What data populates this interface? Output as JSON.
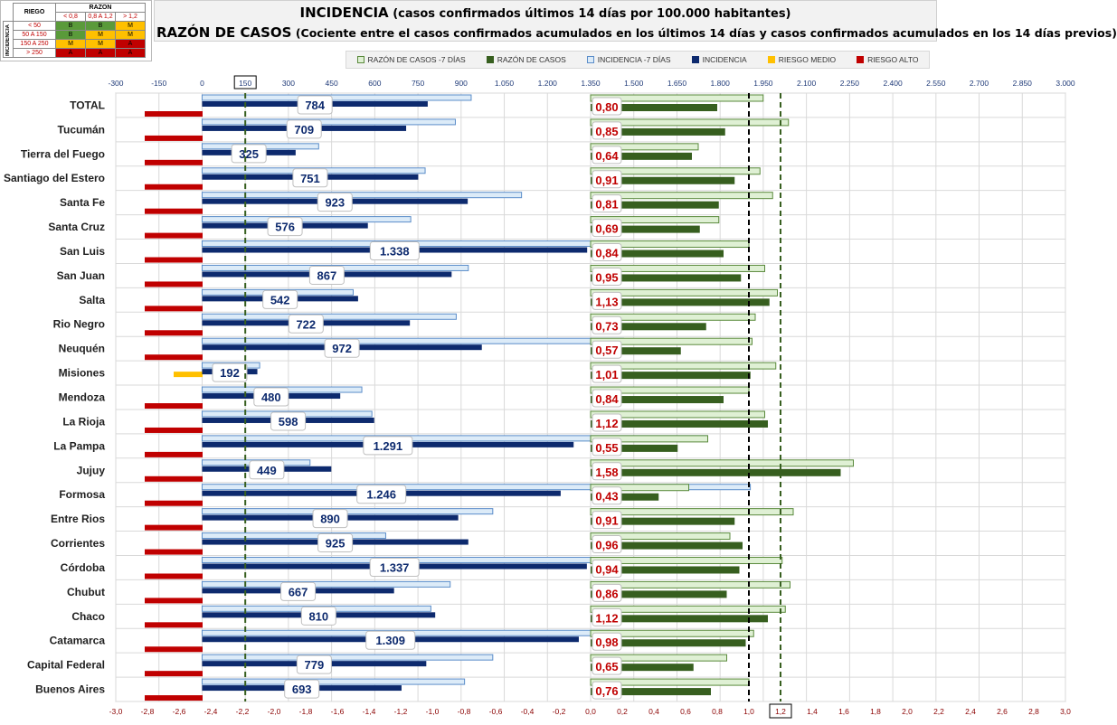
{
  "titles": {
    "title1_main": "INCIDENCIA",
    "title1_sub": " (casos confirmados últimos 14 días por 100.000 habitantes)",
    "title2_main": "RAZÓN DE CASOS",
    "title2_sub": " (Cociente entre el casos confirmados acumulados en los últimos 14 días y casos confirmados acumulados en los 14 días previos)"
  },
  "risk_table": {
    "riego_label": "RIEGO",
    "razon_label": "RAZON",
    "incidencia_label": "INCIDENCIA",
    "razon_ranges": [
      "< 0,8",
      "0,8 A 1,2",
      "> 1,2"
    ],
    "rows": [
      {
        "range": "< 50",
        "cells": [
          "B",
          "B",
          "M"
        ]
      },
      {
        "range": "50 A 150",
        "cells": [
          "B",
          "M",
          "M"
        ]
      },
      {
        "range": "150 A 250",
        "cells": [
          "M",
          "M",
          "A"
        ]
      },
      {
        "range": "> 250",
        "cells": [
          "A",
          "A",
          "A"
        ]
      }
    ],
    "colors": {
      "B": "#5a9a3a",
      "M": "#ffc000",
      "A": "#c00000"
    }
  },
  "legend": [
    {
      "label": "RAZÓN DE CASOS -7 DÍAS",
      "color": "#dff0d4",
      "border": "#5a8a3c"
    },
    {
      "label": "RAZÓN DE CASOS",
      "color": "#375f1f",
      "border": "#375f1f"
    },
    {
      "label": "INCIDENCIA -7 DÍAS",
      "color": "#dcebf8",
      "border": "#5b8dc9"
    },
    {
      "label": "INCIDENCIA",
      "color": "#0d2a6e",
      "border": "#0d2a6e"
    },
    {
      "label": "RIESGO MEDIO",
      "color": "#ffc000",
      "border": "#ffc000"
    },
    {
      "label": "RIESGO ALTO",
      "color": "#c00000",
      "border": "#c00000"
    }
  ],
  "chart_data": {
    "type": "bar",
    "categories": [
      "TOTAL",
      "Tucumán",
      "Tierra del Fuego",
      "Santiago del Estero",
      "Santa Fe",
      "Santa Cruz",
      "San Luis",
      "San Juan",
      "Salta",
      "Rio Negro",
      "Neuquén",
      "Misiones",
      "Mendoza",
      "La Rioja",
      "La Pampa",
      "Jujuy",
      "Formosa",
      "Entre Rios",
      "Corrientes",
      "Córdoba",
      "Chubut",
      "Chaco",
      "Catamarca",
      "Capital Federal",
      "Buenos Aires"
    ],
    "incidence_axis": {
      "ticks": [
        -300,
        -150,
        0,
        150,
        300,
        450,
        600,
        750,
        900,
        1050,
        1200,
        1350,
        1500,
        1650,
        1800,
        1950,
        2100,
        2250,
        2400,
        2550,
        2700,
        2850,
        3000
      ],
      "tick_labels": [
        "-300",
        "-150",
        "0",
        "150",
        "300",
        "450",
        "600",
        "750",
        "900",
        "1.050",
        "1.200",
        "1.350",
        "1.500",
        "1.650",
        "1.800",
        "1.950",
        "2.100",
        "2.250",
        "2.400",
        "2.550",
        "2.700",
        "2.850",
        "3.000"
      ],
      "range": [
        -300,
        3000
      ],
      "highlight_tick": "150",
      "reference_line": 150
    },
    "ratio_axis": {
      "ticks": [
        -3.0,
        -2.8,
        -2.6,
        -2.4,
        -2.2,
        -2.0,
        -1.8,
        -1.6,
        -1.4,
        -1.2,
        -1.0,
        -0.8,
        -0.6,
        -0.4,
        -0.2,
        0.0,
        0.2,
        0.4,
        0.6,
        0.8,
        1.0,
        1.2,
        1.4,
        1.6,
        1.8,
        2.0,
        2.2,
        2.4,
        2.6,
        2.8,
        3.0
      ],
      "tick_labels": [
        "-3,0",
        "-2,8",
        "-2,6",
        "-2,4",
        "-2,2",
        "-2,0",
        "-1,8",
        "-1,6",
        "-1,4",
        "-1,2",
        "-1,0",
        "-0,8",
        "-0,6",
        "-0,4",
        "-0,2",
        "0,0",
        "0,2",
        "0,4",
        "0,6",
        "0,8",
        "1,0",
        "1,2",
        "1,4",
        "1,6",
        "1,8",
        "2,0",
        "2,2",
        "2,4",
        "2,6",
        "2,8",
        "3,0"
      ],
      "range": [
        -3.0,
        3.0
      ],
      "highlight_tick": "1,2",
      "reference_lines": [
        1.0,
        1.2
      ]
    },
    "series": [
      {
        "name": "INCIDENCIA",
        "values": [
          784,
          709,
          325,
          751,
          923,
          576,
          1338,
          867,
          542,
          722,
          972,
          192,
          480,
          598,
          1291,
          449,
          1246,
          890,
          925,
          1337,
          667,
          810,
          1309,
          779,
          693
        ]
      },
      {
        "name": "INCIDENCIA -7 DÍAS",
        "values": [
          935,
          880,
          405,
          775,
          1110,
          725,
          1430,
          925,
          525,
          883,
          1465,
          200,
          555,
          590,
          1755,
          375,
          1905,
          1010,
          638,
          1583,
          862,
          795,
          1418,
          1010,
          912
        ]
      },
      {
        "name": "RAZÓN DE CASOS",
        "values": [
          0.8,
          0.85,
          0.64,
          0.91,
          0.81,
          0.69,
          0.84,
          0.95,
          1.13,
          0.73,
          0.57,
          1.01,
          0.84,
          1.12,
          0.55,
          1.58,
          0.43,
          0.91,
          0.96,
          0.94,
          0.86,
          1.12,
          0.98,
          0.65,
          0.76
        ]
      },
      {
        "name": "RAZÓN DE CASOS -7 DÍAS",
        "values": [
          1.09,
          1.25,
          0.68,
          1.07,
          1.15,
          0.81,
          1.0,
          1.1,
          1.18,
          1.04,
          1.02,
          1.17,
          1.0,
          1.1,
          0.74,
          1.66,
          0.62,
          1.28,
          0.88,
          1.21,
          1.26,
          1.23,
          1.03,
          0.86,
          1.0
        ]
      },
      {
        "name": "RIESGO",
        "values": [
          "A",
          "A",
          "A",
          "A",
          "A",
          "A",
          "A",
          "A",
          "A",
          "A",
          "A",
          "M",
          "A",
          "A",
          "A",
          "A",
          "A",
          "A",
          "A",
          "A",
          "A",
          "A",
          "A",
          "A",
          "A"
        ]
      }
    ],
    "incidence_labels": [
      "784",
      "709",
      "325",
      "751",
      "923",
      "576",
      "1.338",
      "867",
      "542",
      "722",
      "972",
      "192",
      "480",
      "598",
      "1.291",
      "449",
      "1.246",
      "890",
      "925",
      "1.337",
      "667",
      "810",
      "1.309",
      "779",
      "693"
    ],
    "ratio_labels": [
      "0,80",
      "0,85",
      "0,64",
      "0,91",
      "0,81",
      "0,69",
      "0,84",
      "0,95",
      "1,13",
      "0,73",
      "0,57",
      "1,01",
      "0,84",
      "1,12",
      "0,55",
      "1,58",
      "0,43",
      "0,91",
      "0,96",
      "0,94",
      "0,86",
      "1,12",
      "0,98",
      "0,65",
      "0,76"
    ],
    "grid": true,
    "legend_position": "top"
  }
}
